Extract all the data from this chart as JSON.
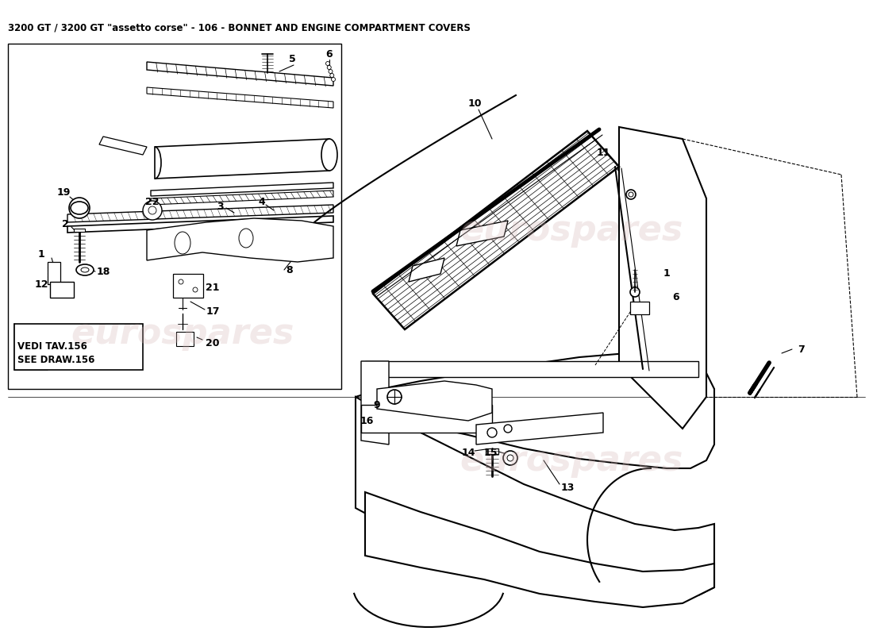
{
  "title": "3200 GT / 3200 GT \"assetto corse\" - 106 - BONNET AND ENGINE COMPARTMENT COVERS",
  "title_fontsize": 8.5,
  "title_color": "#000000",
  "background_color": "#ffffff",
  "watermark_text": "eurospares",
  "watermark_color": "#d4b8b8",
  "watermark_alpha": 0.3,
  "fig_width": 11.0,
  "fig_height": 8.0,
  "dpi": 100
}
